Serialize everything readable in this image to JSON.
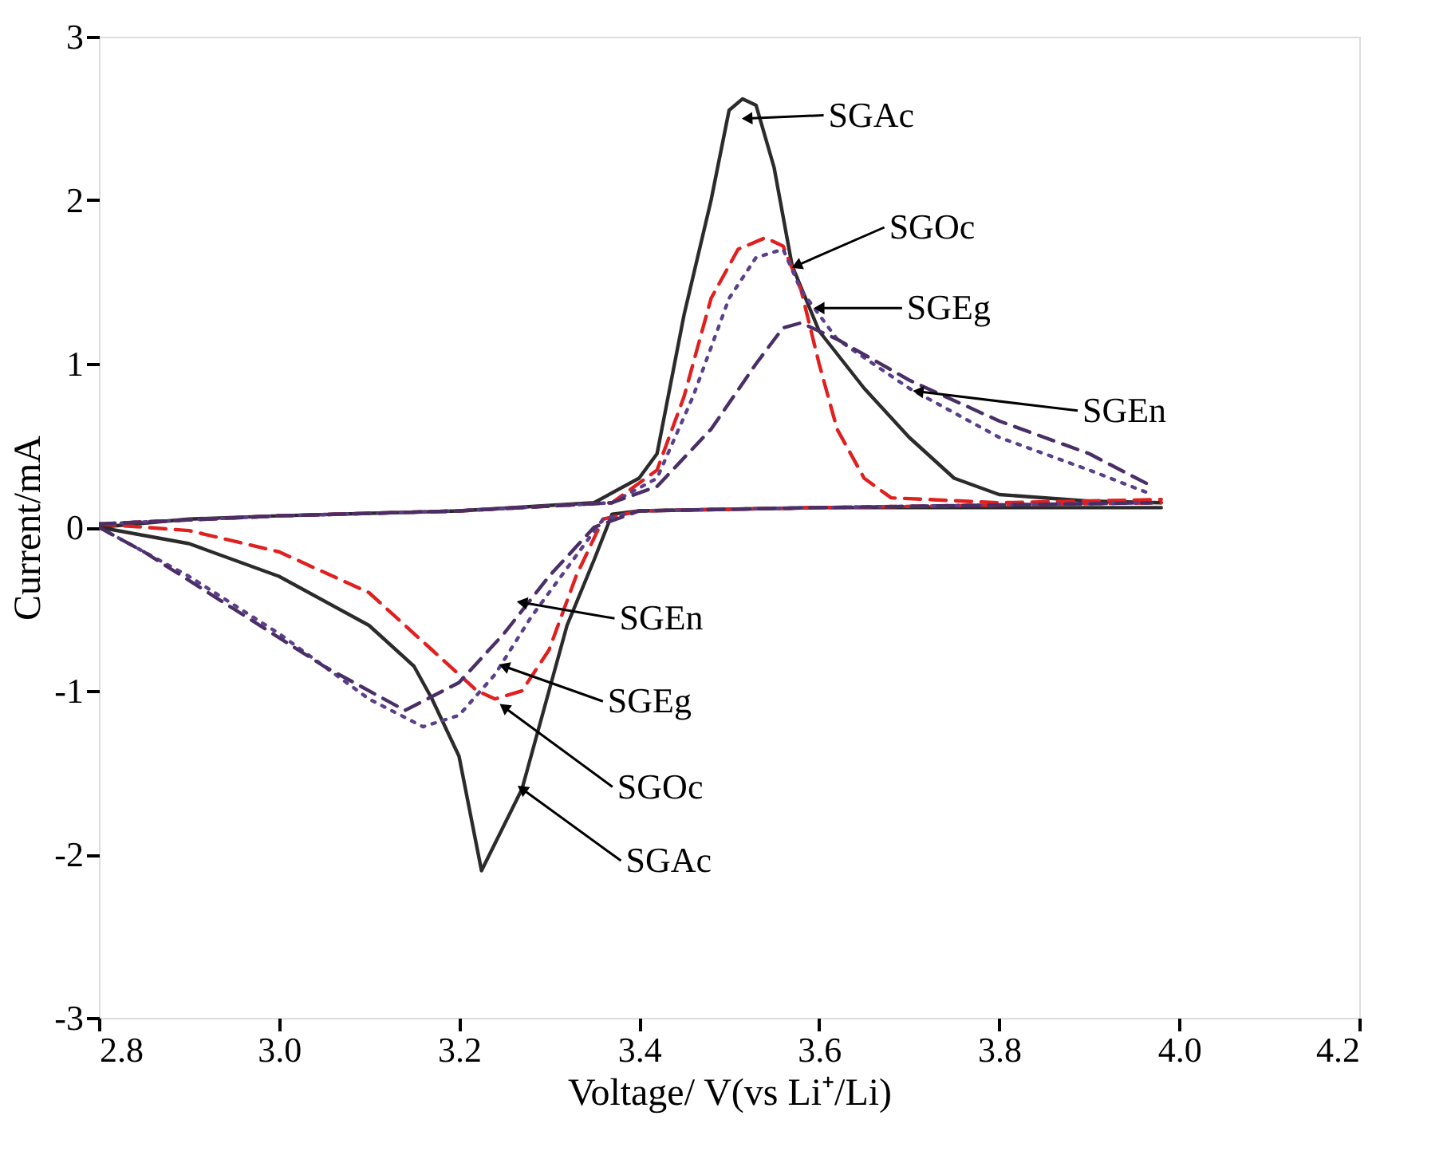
{
  "chart_data": {
    "type": "line",
    "xlabel": "Voltage/ V(vs Li⁺/Li)",
    "ylabel": "Current/mA",
    "xlim": [
      2.8,
      4.2
    ],
    "ylim": [
      -3,
      3
    ],
    "xticks": [
      2.8,
      {
        "value": 3.0,
        "label": "3.0"
      },
      3.2,
      3.4,
      3.6,
      3.8,
      {
        "value": 4.0,
        "label": "4.0"
      },
      4.2
    ],
    "yticks": [
      -3,
      -2,
      -1,
      0,
      1,
      2,
      3
    ],
    "grid": false,
    "legend": false,
    "marker": "none",
    "series": [
      {
        "color": "#2b2b2b",
        "line_style": "solid",
        "x": [
          2.8,
          2.9,
          3.0,
          3.2,
          3.35,
          3.4,
          3.42,
          3.45,
          3.48,
          3.5,
          3.515,
          3.53,
          3.55,
          3.57,
          3.6,
          3.65,
          3.7,
          3.75,
          3.8,
          3.9,
          3.98
        ],
        "values": [
          0.0,
          0.05,
          0.07,
          0.1,
          0.15,
          0.3,
          0.45,
          1.3,
          2.0,
          2.55,
          2.62,
          2.58,
          2.2,
          1.6,
          1.2,
          0.85,
          0.55,
          0.3,
          0.2,
          0.16,
          0.15
        ]
      },
      {
        "color": "#2b2b2b",
        "line_style": "solid",
        "x": [
          2.8,
          2.9,
          3.0,
          3.1,
          3.15,
          3.17,
          3.2,
          3.225,
          3.27,
          3.3,
          3.32,
          3.35,
          3.37,
          3.4,
          3.6,
          3.8,
          3.98
        ],
        "values": [
          0.0,
          -0.1,
          -0.3,
          -0.6,
          -0.85,
          -1.05,
          -1.4,
          -2.1,
          -1.6,
          -1.0,
          -0.6,
          -0.2,
          0.08,
          0.1,
          0.12,
          0.12,
          0.12
        ]
      },
      {
        "color": "#e0201f",
        "line_style": "dashed",
        "x": [
          2.8,
          3.0,
          3.2,
          3.37,
          3.42,
          3.45,
          3.48,
          3.51,
          3.54,
          3.56,
          3.58,
          3.6,
          3.62,
          3.65,
          3.68,
          3.8,
          3.98
        ],
        "values": [
          0.02,
          0.07,
          0.1,
          0.15,
          0.35,
          0.8,
          1.4,
          1.7,
          1.77,
          1.72,
          1.45,
          1.0,
          0.6,
          0.3,
          0.18,
          0.15,
          0.17
        ]
      },
      {
        "color": "#e0201f",
        "line_style": "dashed",
        "x": [
          2.8,
          2.9,
          3.0,
          3.1,
          3.17,
          3.22,
          3.24,
          3.27,
          3.3,
          3.33,
          3.36,
          3.4,
          3.6,
          3.98
        ],
        "values": [
          0.02,
          -0.02,
          -0.15,
          -0.4,
          -0.75,
          -1.0,
          -1.05,
          -1.0,
          -0.75,
          -0.3,
          0.05,
          0.1,
          0.12,
          0.15
        ]
      },
      {
        "color": "#5a3f8c",
        "line_style": "dotted",
        "x": [
          2.8,
          3.0,
          3.2,
          3.37,
          3.42,
          3.46,
          3.5,
          3.53,
          3.56,
          3.58,
          3.62,
          3.7,
          3.8,
          3.9,
          3.97
        ],
        "values": [
          0.02,
          0.07,
          0.1,
          0.15,
          0.3,
          0.8,
          1.4,
          1.65,
          1.7,
          1.45,
          1.15,
          0.85,
          0.55,
          0.35,
          0.2
        ]
      },
      {
        "color": "#5a3f8c",
        "line_style": "dotted",
        "x": [
          2.8,
          2.9,
          3.0,
          3.1,
          3.16,
          3.2,
          3.24,
          3.28,
          3.32,
          3.36,
          3.4,
          3.6,
          3.97
        ],
        "values": [
          0.0,
          -0.3,
          -0.65,
          -1.05,
          -1.22,
          -1.15,
          -0.9,
          -0.55,
          -0.25,
          0.05,
          0.1,
          0.12,
          0.15
        ]
      },
      {
        "color": "#4a2e66",
        "line_style": "dashed",
        "x": [
          2.8,
          3.0,
          3.2,
          3.37,
          3.42,
          3.48,
          3.53,
          3.56,
          3.58,
          3.62,
          3.7,
          3.8,
          3.9,
          3.97
        ],
        "values": [
          0.02,
          0.07,
          0.1,
          0.15,
          0.25,
          0.6,
          1.0,
          1.22,
          1.25,
          1.15,
          0.9,
          0.65,
          0.45,
          0.25
        ]
      },
      {
        "color": "#4a2e66",
        "line_style": "dashed",
        "x": [
          2.8,
          2.85,
          2.95,
          3.05,
          3.14,
          3.2,
          3.25,
          3.3,
          3.35,
          3.4,
          3.6,
          3.97
        ],
        "values": [
          0.0,
          -0.15,
          -0.5,
          -0.85,
          -1.12,
          -0.95,
          -0.65,
          -0.3,
          0.0,
          0.1,
          0.12,
          0.15
        ]
      }
    ],
    "annotations": [
      {
        "text": "SGAc",
        "x": 3.52,
        "y": 2.5
      },
      {
        "text": "SGOc",
        "x": 3.575,
        "y": 1.6
      },
      {
        "text": "SGEg",
        "x": 3.6,
        "y": 1.34
      },
      {
        "text": "SGEn",
        "x": 3.71,
        "y": 0.83
      },
      {
        "text": "SGEn",
        "x": 3.27,
        "y": -0.46
      },
      {
        "text": "SGEg",
        "x": 3.25,
        "y": -0.85
      },
      {
        "text": "SGOc",
        "x": 3.25,
        "y": -1.1
      },
      {
        "text": "SGAc",
        "x": 3.27,
        "y": -1.6
      }
    ]
  }
}
